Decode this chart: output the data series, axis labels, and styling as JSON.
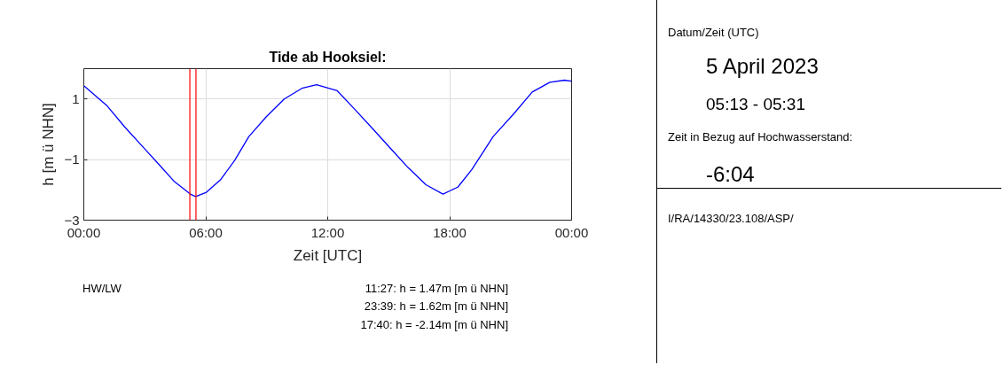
{
  "chart_data": {
    "type": "line",
    "title": "Tide ab Hooksiel:",
    "xlabel": "Zeit [UTC]",
    "ylabel": "h [m ü NHN]",
    "x": [
      0,
      1.15,
      2.02,
      2.89,
      3.76,
      4.46,
      5.24,
      5.5,
      6.03,
      6.72,
      7.42,
      8.12,
      8.99,
      9.86,
      10.73,
      11.45,
      12.47,
      13.34,
      14.22,
      15.09,
      15.96,
      16.83,
      17.67,
      18.4,
      19.09,
      20.14,
      21.18,
      22.06,
      22.93,
      23.65,
      24
    ],
    "series": [
      {
        "color": "#0000ff",
        "values": [
          1.44,
          0.77,
          0.07,
          -0.57,
          -1.21,
          -1.73,
          -2.14,
          -2.22,
          -2.08,
          -1.67,
          -1.03,
          -0.24,
          0.42,
          1.0,
          1.35,
          1.47,
          1.27,
          0.65,
          0.01,
          -0.63,
          -1.27,
          -1.83,
          -2.14,
          -1.91,
          -1.33,
          -0.24,
          0.53,
          1.23,
          1.55,
          1.62,
          1.59
        ]
      }
    ],
    "xlim": [
      0,
      24
    ],
    "ylim": [
      -3,
      2
    ],
    "xticks": [
      {
        "value": 0,
        "label": "00:00"
      },
      {
        "value": 6,
        "label": "06:00"
      },
      {
        "value": 12,
        "label": "12:00"
      },
      {
        "value": 18,
        "label": "18:00"
      },
      {
        "value": 24,
        "label": "00:00"
      }
    ],
    "yticks": [
      -3,
      -1,
      1
    ],
    "grid": true,
    "marker": "none",
    "line_style": "solid",
    "ref_lines": [
      {
        "axis": "x",
        "value": 5.217,
        "color": "#ff0000"
      },
      {
        "axis": "x",
        "value": 5.517,
        "color": "#ff0000"
      }
    ],
    "annotations": [
      "HW/LW",
      "11:27: h = 1.47m [m ü NHN]",
      "23:39: h = 1.62m [m ü NHN]",
      "17:40: h = -2.14m [m ü NHN]",
      "Datum/Zeit (UTC)",
      "5 April 2023",
      "05:13 - 05:31",
      "Zeit in Bezug auf Hochwasserstand:",
      "-6:04",
      "I/RA/14330/23.108/ASP/"
    ]
  }
}
